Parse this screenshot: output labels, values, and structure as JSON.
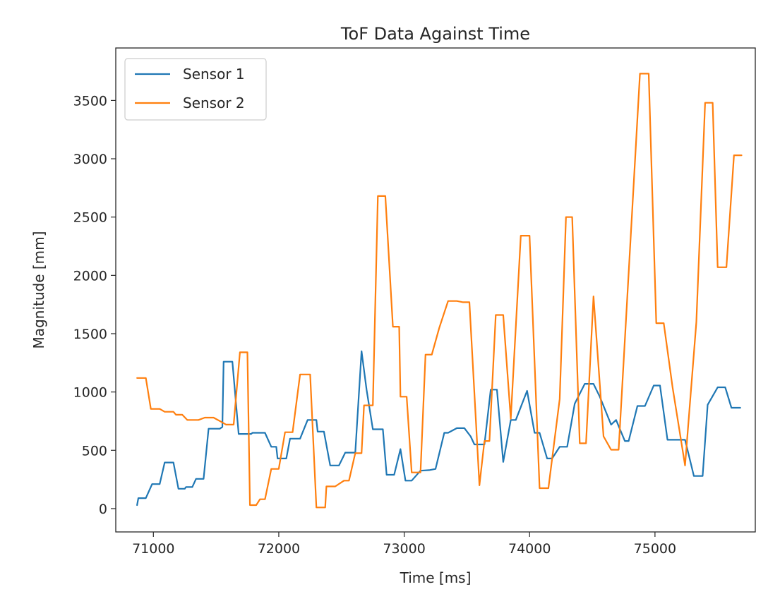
{
  "chart_data": {
    "type": "line",
    "title": "ToF Data Against Time",
    "xlabel": "Time [ms]",
    "ylabel": "Magnitude [mm]",
    "xlim": [
      70700,
      75800
    ],
    "ylim": [
      -200,
      3950
    ],
    "xticks": [
      71000,
      72000,
      73000,
      74000,
      75000
    ],
    "yticks": [
      0,
      500,
      1000,
      1500,
      2000,
      2500,
      3000,
      3500
    ],
    "grid": false,
    "legend_position": "top-left",
    "series": [
      {
        "name": "Sensor 1",
        "color": "#1f77b4",
        "points": [
          [
            70870,
            30
          ],
          [
            70880,
            90
          ],
          [
            70940,
            90
          ],
          [
            70990,
            210
          ],
          [
            71050,
            210
          ],
          [
            71090,
            395
          ],
          [
            71160,
            395
          ],
          [
            71200,
            170
          ],
          [
            71250,
            170
          ],
          [
            71260,
            185
          ],
          [
            71310,
            185
          ],
          [
            71340,
            255
          ],
          [
            71400,
            255
          ],
          [
            71440,
            685
          ],
          [
            71530,
            685
          ],
          [
            71550,
            700
          ],
          [
            71560,
            1260
          ],
          [
            71630,
            1260
          ],
          [
            71680,
            640
          ],
          [
            71780,
            640
          ],
          [
            71790,
            650
          ],
          [
            71890,
            650
          ],
          [
            71940,
            530
          ],
          [
            71980,
            530
          ],
          [
            71990,
            430
          ],
          [
            72060,
            430
          ],
          [
            72090,
            600
          ],
          [
            72170,
            600
          ],
          [
            72230,
            760
          ],
          [
            72300,
            760
          ],
          [
            72310,
            660
          ],
          [
            72360,
            660
          ],
          [
            72410,
            370
          ],
          [
            72480,
            370
          ],
          [
            72530,
            480
          ],
          [
            72610,
            480
          ],
          [
            72660,
            1350
          ],
          [
            72700,
            1020
          ],
          [
            72750,
            680
          ],
          [
            72830,
            680
          ],
          [
            72860,
            290
          ],
          [
            72920,
            290
          ],
          [
            72970,
            510
          ],
          [
            73010,
            240
          ],
          [
            73060,
            240
          ],
          [
            73130,
            325
          ],
          [
            73200,
            330
          ],
          [
            73250,
            340
          ],
          [
            73320,
            650
          ],
          [
            73350,
            650
          ],
          [
            73420,
            690
          ],
          [
            73480,
            690
          ],
          [
            73530,
            620
          ],
          [
            73560,
            550
          ],
          [
            73640,
            550
          ],
          [
            73690,
            1020
          ],
          [
            73740,
            1020
          ],
          [
            73790,
            400
          ],
          [
            73850,
            760
          ],
          [
            73890,
            760
          ],
          [
            73980,
            1010
          ],
          [
            74040,
            650
          ],
          [
            74080,
            650
          ],
          [
            74140,
            430
          ],
          [
            74180,
            430
          ],
          [
            74240,
            530
          ],
          [
            74300,
            530
          ],
          [
            74360,
            900
          ],
          [
            74440,
            1070
          ],
          [
            74510,
            1070
          ],
          [
            74560,
            960
          ],
          [
            74650,
            720
          ],
          [
            74690,
            760
          ],
          [
            74760,
            580
          ],
          [
            74790,
            580
          ],
          [
            74860,
            880
          ],
          [
            74920,
            880
          ],
          [
            74990,
            1055
          ],
          [
            75040,
            1055
          ],
          [
            75100,
            590
          ],
          [
            75240,
            590
          ],
          [
            75310,
            280
          ],
          [
            75380,
            280
          ],
          [
            75420,
            890
          ],
          [
            75500,
            1040
          ],
          [
            75560,
            1040
          ],
          [
            75610,
            865
          ],
          [
            75680,
            865
          ]
        ]
      },
      {
        "name": "Sensor 2",
        "color": "#ff7f0e",
        "points": [
          [
            70870,
            1120
          ],
          [
            70940,
            1120
          ],
          [
            70980,
            855
          ],
          [
            71050,
            855
          ],
          [
            71090,
            830
          ],
          [
            71160,
            830
          ],
          [
            71180,
            805
          ],
          [
            71230,
            805
          ],
          [
            71270,
            760
          ],
          [
            71360,
            760
          ],
          [
            71410,
            780
          ],
          [
            71480,
            780
          ],
          [
            71540,
            745
          ],
          [
            71580,
            720
          ],
          [
            71640,
            720
          ],
          [
            71690,
            1340
          ],
          [
            71750,
            1340
          ],
          [
            71770,
            30
          ],
          [
            71820,
            30
          ],
          [
            71850,
            80
          ],
          [
            71890,
            80
          ],
          [
            71940,
            340
          ],
          [
            72000,
            340
          ],
          [
            72050,
            655
          ],
          [
            72110,
            655
          ],
          [
            72170,
            1150
          ],
          [
            72250,
            1150
          ],
          [
            72300,
            10
          ],
          [
            72370,
            10
          ],
          [
            72380,
            190
          ],
          [
            72450,
            190
          ],
          [
            72520,
            240
          ],
          [
            72560,
            240
          ],
          [
            72610,
            475
          ],
          [
            72660,
            475
          ],
          [
            72680,
            885
          ],
          [
            72750,
            885
          ],
          [
            72790,
            2680
          ],
          [
            72850,
            2680
          ],
          [
            72910,
            1560
          ],
          [
            72960,
            1560
          ],
          [
            72970,
            960
          ],
          [
            73020,
            960
          ],
          [
            73060,
            310
          ],
          [
            73130,
            310
          ],
          [
            73170,
            1320
          ],
          [
            73220,
            1320
          ],
          [
            73280,
            1550
          ],
          [
            73350,
            1780
          ],
          [
            73420,
            1780
          ],
          [
            73470,
            1770
          ],
          [
            73520,
            1770
          ],
          [
            73600,
            200
          ],
          [
            73640,
            580
          ],
          [
            73680,
            580
          ],
          [
            73730,
            1660
          ],
          [
            73790,
            1660
          ],
          [
            73850,
            770
          ],
          [
            73930,
            2340
          ],
          [
            74000,
            2340
          ],
          [
            74080,
            175
          ],
          [
            74150,
            175
          ],
          [
            74240,
            940
          ],
          [
            74290,
            2500
          ],
          [
            74340,
            2500
          ],
          [
            74400,
            560
          ],
          [
            74450,
            560
          ],
          [
            74510,
            1820
          ],
          [
            74590,
            620
          ],
          [
            74650,
            505
          ],
          [
            74710,
            505
          ],
          [
            74880,
            3730
          ],
          [
            74950,
            3730
          ],
          [
            75010,
            1590
          ],
          [
            75070,
            1590
          ],
          [
            75140,
            1040
          ],
          [
            75240,
            370
          ],
          [
            75330,
            1600
          ],
          [
            75400,
            3480
          ],
          [
            75460,
            3480
          ],
          [
            75500,
            2070
          ],
          [
            75570,
            2070
          ],
          [
            75630,
            3030
          ],
          [
            75690,
            3030
          ]
        ]
      }
    ]
  }
}
